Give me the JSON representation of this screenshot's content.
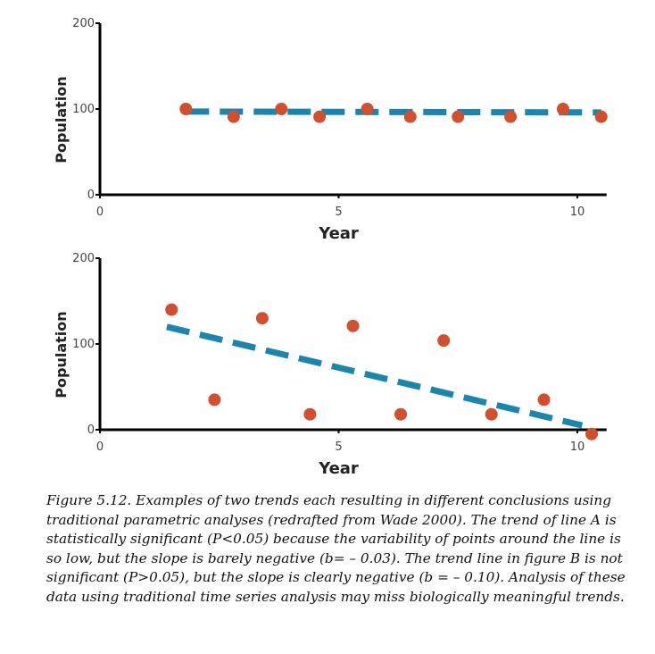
{
  "chart_data": [
    {
      "type": "scatter",
      "xlabel": "Year",
      "ylabel": "Population",
      "xlim": [
        0,
        10.5
      ],
      "ylim": [
        0,
        200
      ],
      "xticks": [
        0,
        5,
        10
      ],
      "yticks": [
        0,
        100,
        200
      ],
      "points": {
        "x": [
          1.8,
          2.8,
          3.8,
          4.6,
          5.6,
          6.5,
          7.5,
          8.6,
          9.7,
          10.5
        ],
        "y": [
          100,
          91,
          100,
          91,
          100,
          91,
          91,
          91,
          100,
          91
        ]
      },
      "trend_line": {
        "x": [
          1.8,
          10.5
        ],
        "y": [
          97,
          96
        ]
      },
      "point_color": "#d0502e",
      "line_color": "#1a86b0"
    },
    {
      "type": "scatter",
      "xlabel": "Year",
      "ylabel": "Population",
      "xlim": [
        0,
        10.5
      ],
      "ylim": [
        0,
        200
      ],
      "xticks": [
        0,
        5,
        10
      ],
      "yticks": [
        0,
        100,
        200
      ],
      "points": {
        "x": [
          1.5,
          2.4,
          3.4,
          4.4,
          5.3,
          6.3,
          7.2,
          8.2,
          9.3,
          10.3
        ],
        "y": [
          140,
          35,
          130,
          18,
          121,
          18,
          104,
          18,
          35,
          -5
        ]
      },
      "trend_line": {
        "x": [
          1.4,
          10.1
        ],
        "y": [
          120,
          5
        ]
      },
      "point_color": "#d0502e",
      "line_color": "#1a86b0"
    }
  ],
  "caption": "Figure 5.12. Examples of two trends each resulting in different conclusions using traditional parametric analyses (redrafted from Wade 2000). The trend of line A is statistically significant (P<0.05) because the variability of points around the line is so low, but the slope is barely negative (b= – 0.03). The trend line in figure B is not significant (P>0.05), but the slope is clearly negative (b = – 0.10). Analysis of these data using traditional time series analysis may miss biologically meaningful trends."
}
